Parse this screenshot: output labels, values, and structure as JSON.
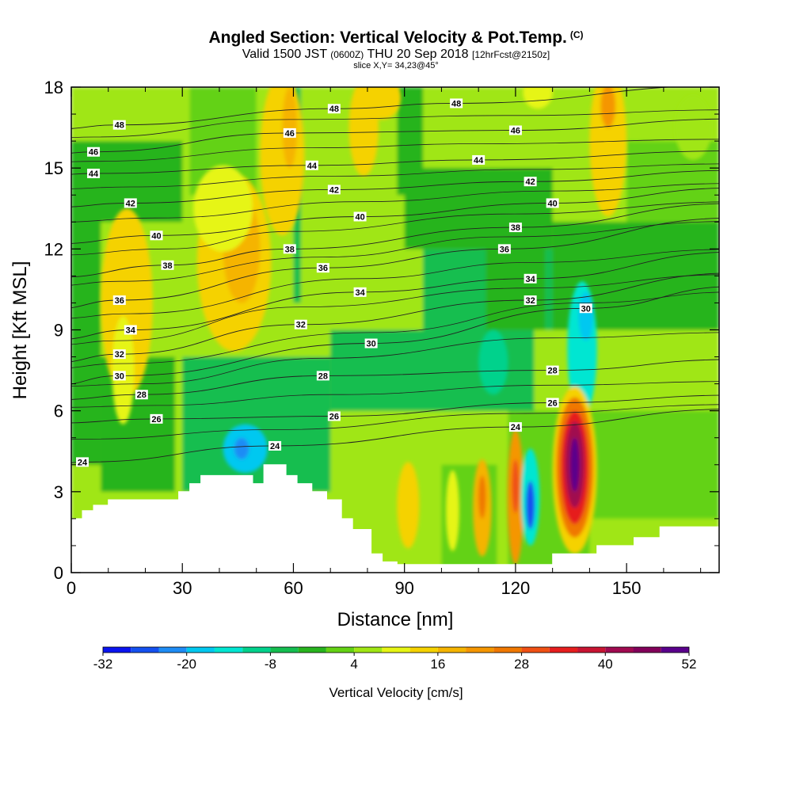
{
  "header": {
    "title": "Angled Section: Vertical Velocity & Pot.Temp.",
    "title_mark": "(C)",
    "valid_prefix": "Valid 1500 JST",
    "valid_zulu": "(0600Z)",
    "valid_date": "THU 20 Sep 2018",
    "forecast": "[12hrFcst@2150z]",
    "slice": "slice X,Y= 34,23@45°"
  },
  "chart_data": {
    "type": "heatmap",
    "xlabel": "Distance [nm]",
    "ylabel": "Height [Kft MSL]",
    "xlim": [
      0,
      175
    ],
    "ylim": [
      0,
      18
    ],
    "xticks": [
      0,
      30,
      60,
      90,
      120,
      150
    ],
    "yticks": [
      0,
      3,
      6,
      9,
      12,
      15,
      18
    ],
    "colorbar": {
      "label": "Vertical Velocity [cm/s]",
      "min": -32,
      "max": 52,
      "step": 4,
      "tick_labels": [
        "-32",
        "-20",
        "-8",
        "4",
        "16",
        "28",
        "40",
        "52"
      ],
      "colors": [
        "#0a14f0",
        "#1450f0",
        "#1e8cf5",
        "#00c8f0",
        "#00e6d2",
        "#00d28c",
        "#14be50",
        "#28b41e",
        "#64d214",
        "#a0e614",
        "#e6f514",
        "#f5d200",
        "#f5b400",
        "#f59600",
        "#f07800",
        "#f05014",
        "#e61e1e",
        "#c81432",
        "#a00a50",
        "#82005a",
        "#5a008c"
      ]
    },
    "regions": [
      {
        "x1": 0,
        "x2": 175,
        "y1": 0,
        "y2": 18,
        "value": 6
      },
      {
        "x1": 0,
        "x2": 30,
        "y1": 13,
        "y2": 16,
        "value": -2
      },
      {
        "x1": 0,
        "x2": 8,
        "y1": 4,
        "y2": 14,
        "value": -4
      },
      {
        "x1": 8,
        "x2": 28,
        "y1": 3,
        "y2": 8,
        "value": -4
      },
      {
        "x1": 30,
        "x2": 70,
        "y1": 3,
        "y2": 8,
        "value": -6
      },
      {
        "x1": 70,
        "x2": 125,
        "y1": 6,
        "y2": 9,
        "value": -8
      },
      {
        "x1": 95,
        "x2": 140,
        "y1": 9,
        "y2": 12,
        "value": -5
      },
      {
        "x1": 130,
        "x2": 175,
        "y1": 9,
        "y2": 13,
        "value": -4
      },
      {
        "x1": 90,
        "x2": 130,
        "y1": 12,
        "y2": 15,
        "value": -3
      },
      {
        "x1": 150,
        "x2": 175,
        "y1": 13,
        "y2": 16,
        "value": 0
      },
      {
        "x1": 32,
        "x2": 50,
        "y1": 14,
        "y2": 18,
        "value": 1
      },
      {
        "x1": 60,
        "x2": 62,
        "y1": 10,
        "y2": 18,
        "value": -8
      },
      {
        "x1": 88,
        "x2": 95,
        "y1": 14,
        "y2": 18,
        "value": -4
      },
      {
        "x1": 112,
        "x2": 128,
        "y1": 9,
        "y2": 14,
        "value": -3
      },
      {
        "x1": 118,
        "x2": 140,
        "y1": 0,
        "y2": 6,
        "value": 0
      },
      {
        "x1": 140,
        "x2": 175,
        "y1": 2,
        "y2": 6,
        "value": 2
      },
      {
        "x1": 100,
        "x2": 115,
        "y1": 0,
        "y2": 4,
        "value": 2
      }
    ],
    "cells": [
      {
        "x": 15,
        "y": 10,
        "rx": 7,
        "ry": 3.5,
        "value": 12
      },
      {
        "x": 14,
        "y": 7.5,
        "rx": 3,
        "ry": 2,
        "value": 8
      },
      {
        "x": 44,
        "y": 11.5,
        "rx": 10,
        "ry": 3.3,
        "value": 14
      },
      {
        "x": 46,
        "y": 12,
        "rx": 5,
        "ry": 2,
        "value": 19
      },
      {
        "x": 41,
        "y": 13.5,
        "rx": 8,
        "ry": 1.6,
        "value": 11
      },
      {
        "x": 57,
        "y": 15.5,
        "rx": 6,
        "ry": 3,
        "value": 15
      },
      {
        "x": 59,
        "y": 16.5,
        "rx": 2,
        "ry": 1.5,
        "value": 18
      },
      {
        "x": 79,
        "y": 16.5,
        "rx": 4,
        "ry": 1.8,
        "value": 13
      },
      {
        "x": 84,
        "y": 17.6,
        "rx": 5,
        "ry": 0.8,
        "value": 12
      },
      {
        "x": 126,
        "y": 17.8,
        "rx": 4,
        "ry": 0.6,
        "value": 10
      },
      {
        "x": 145,
        "y": 16,
        "rx": 5,
        "ry": 2.8,
        "value": 14
      },
      {
        "x": 145,
        "y": 17.3,
        "rx": 2,
        "ry": 0.8,
        "value": 20
      },
      {
        "x": 168,
        "y": 16.5,
        "rx": 5,
        "ry": 1.2,
        "value": 6
      },
      {
        "x": 47,
        "y": 4.6,
        "rx": 6,
        "ry": 0.9,
        "value": -18
      },
      {
        "x": 46,
        "y": 4.6,
        "rx": 2,
        "ry": 0.4,
        "value": -24
      },
      {
        "x": 138,
        "y": 8.3,
        "rx": 4,
        "ry": 2.5,
        "value": -16
      },
      {
        "x": 139,
        "y": 9.5,
        "rx": 2,
        "ry": 0.9,
        "value": -20
      },
      {
        "x": 114,
        "y": 7.8,
        "rx": 4,
        "ry": 1.2,
        "value": -12
      },
      {
        "x": 91,
        "y": 2.5,
        "rx": 3,
        "ry": 1.6,
        "value": 13
      },
      {
        "x": 103,
        "y": 2.3,
        "rx": 1.8,
        "ry": 1.5,
        "value": 8
      },
      {
        "x": 111,
        "y": 2.4,
        "rx": 2.5,
        "ry": 1.8,
        "value": 18
      },
      {
        "x": 111,
        "y": 2.8,
        "rx": 1,
        "ry": 0.8,
        "value": 24
      },
      {
        "x": 120,
        "y": 2.8,
        "rx": 2.2,
        "ry": 2.5,
        "value": 22
      },
      {
        "x": 120,
        "y": 3.2,
        "rx": 1,
        "ry": 1,
        "value": 28
      },
      {
        "x": 124,
        "y": 2.8,
        "rx": 2.5,
        "ry": 1.8,
        "value": -14
      },
      {
        "x": 124,
        "y": 2.5,
        "rx": 1.2,
        "ry": 0.9,
        "value": -26
      },
      {
        "x": 136,
        "y": 3.8,
        "rx": 6,
        "ry": 3.1,
        "value": 14
      },
      {
        "x": 136,
        "y": 3.9,
        "rx": 5,
        "ry": 2.6,
        "value": 24
      },
      {
        "x": 136,
        "y": 3.9,
        "rx": 3.8,
        "ry": 2.1,
        "value": 32
      },
      {
        "x": 136,
        "y": 4,
        "rx": 2.6,
        "ry": 1.6,
        "value": 40
      },
      {
        "x": 136,
        "y": 4,
        "rx": 1.2,
        "ry": 1,
        "value": 48
      }
    ],
    "terrain": [
      [
        0,
        2.0
      ],
      [
        3,
        2.0
      ],
      [
        3,
        2.3
      ],
      [
        6,
        2.3
      ],
      [
        6,
        2.5
      ],
      [
        10,
        2.5
      ],
      [
        10,
        2.7
      ],
      [
        29,
        2.7
      ],
      [
        29,
        3.0
      ],
      [
        32,
        3.0
      ],
      [
        32,
        3.3
      ],
      [
        35,
        3.3
      ],
      [
        35,
        3.6
      ],
      [
        49,
        3.6
      ],
      [
        49,
        3.3
      ],
      [
        52,
        3.3
      ],
      [
        52,
        4.0
      ],
      [
        58,
        4.0
      ],
      [
        58,
        3.6
      ],
      [
        61,
        3.6
      ],
      [
        61,
        3.3
      ],
      [
        65,
        3.3
      ],
      [
        65,
        3.0
      ],
      [
        69,
        3.0
      ],
      [
        69,
        2.7
      ],
      [
        73,
        2.7
      ],
      [
        73,
        2.0
      ],
      [
        76,
        2.0
      ],
      [
        76,
        1.6
      ],
      [
        81,
        1.6
      ],
      [
        81,
        0.7
      ],
      [
        84,
        0.7
      ],
      [
        84,
        0.4
      ],
      [
        88,
        0.4
      ],
      [
        88,
        0.3
      ],
      [
        130,
        0.3
      ],
      [
        130,
        0.7
      ],
      [
        142,
        0.7
      ],
      [
        142,
        1.0
      ],
      [
        152,
        1.0
      ],
      [
        152,
        1.3
      ],
      [
        159,
        1.3
      ],
      [
        159,
        1.7
      ],
      [
        175,
        1.7
      ],
      [
        175,
        0
      ],
      [
        0,
        0
      ]
    ],
    "isentropes": {
      "levels": [
        24,
        26,
        28,
        30,
        32,
        34,
        36,
        38,
        40,
        42,
        44,
        46,
        48
      ],
      "labels": [
        {
          "text": "24",
          "x": 3,
          "y": 4.1
        },
        {
          "text": "24",
          "x": 55,
          "y": 4.7
        },
        {
          "text": "24",
          "x": 120,
          "y": 5.4
        },
        {
          "text": "26",
          "x": 23,
          "y": 5.7
        },
        {
          "text": "26",
          "x": 71,
          "y": 5.8
        },
        {
          "text": "26",
          "x": 130,
          "y": 6.3
        },
        {
          "text": "28",
          "x": 19,
          "y": 6.6
        },
        {
          "text": "28",
          "x": 68,
          "y": 7.3
        },
        {
          "text": "28",
          "x": 130,
          "y": 7.5
        },
        {
          "text": "30",
          "x": 13,
          "y": 7.3
        },
        {
          "text": "30",
          "x": 81,
          "y": 8.5
        },
        {
          "text": "30",
          "x": 139,
          "y": 9.8
        },
        {
          "text": "32",
          "x": 13,
          "y": 8.1
        },
        {
          "text": "32",
          "x": 62,
          "y": 9.2
        },
        {
          "text": "32",
          "x": 124,
          "y": 10.1
        },
        {
          "text": "34",
          "x": 16,
          "y": 9.0
        },
        {
          "text": "34",
          "x": 78,
          "y": 10.4
        },
        {
          "text": "34",
          "x": 124,
          "y": 10.9
        },
        {
          "text": "36",
          "x": 13,
          "y": 10.1
        },
        {
          "text": "36",
          "x": 68,
          "y": 11.3
        },
        {
          "text": "36",
          "x": 117,
          "y": 12.0
        },
        {
          "text": "38",
          "x": 26,
          "y": 11.4
        },
        {
          "text": "38",
          "x": 59,
          "y": 12.0
        },
        {
          "text": "38",
          "x": 120,
          "y": 12.8
        },
        {
          "text": "40",
          "x": 23,
          "y": 12.5
        },
        {
          "text": "40",
          "x": 78,
          "y": 13.2
        },
        {
          "text": "40",
          "x": 130,
          "y": 13.7
        },
        {
          "text": "42",
          "x": 16,
          "y": 13.7
        },
        {
          "text": "42",
          "x": 71,
          "y": 14.2
        },
        {
          "text": "42",
          "x": 124,
          "y": 14.5
        },
        {
          "text": "44",
          "x": 6,
          "y": 14.8
        },
        {
          "text": "44",
          "x": 65,
          "y": 15.1
        },
        {
          "text": "44",
          "x": 110,
          "y": 15.3
        },
        {
          "text": "46",
          "x": 6,
          "y": 15.6
        },
        {
          "text": "46",
          "x": 59,
          "y": 16.3
        },
        {
          "text": "46",
          "x": 120,
          "y": 16.4
        },
        {
          "text": "48",
          "x": 13,
          "y": 16.6
        },
        {
          "text": "48",
          "x": 71,
          "y": 17.2
        },
        {
          "text": "48",
          "x": 104,
          "y": 17.4
        }
      ]
    }
  }
}
